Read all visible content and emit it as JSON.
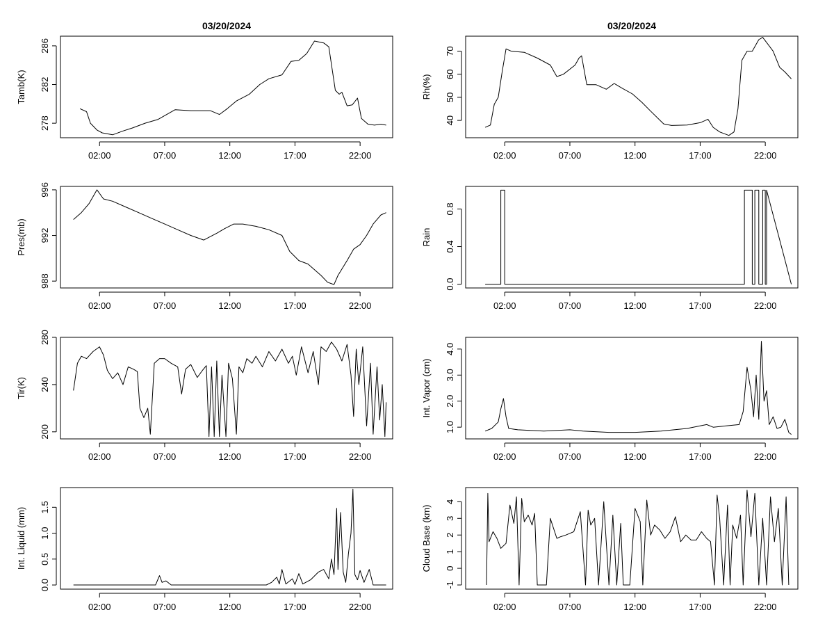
{
  "chart_data": [
    {
      "id": "tamb",
      "type": "line",
      "title": "03/20/2024",
      "ylabel": "Tamb(K)",
      "xlabel": "",
      "ylim": [
        276.5,
        287
      ],
      "yticks": [
        278,
        282,
        286
      ],
      "ytick_labels": [
        "278",
        "282",
        "286"
      ],
      "xlim": [
        -1,
        24.5
      ],
      "xticks": [
        2,
        7,
        12,
        17,
        22
      ],
      "xtick_labels": [
        "02:00",
        "07:00",
        "12:00",
        "17:00",
        "22:00"
      ],
      "series": [
        {
          "name": "Tamb",
          "x": [
            0.5,
            1,
            1.3,
            1.8,
            2.2,
            3,
            3.8,
            4.5,
            5.5,
            6.5,
            7.8,
            9,
            10.5,
            11.2,
            11.8,
            12.5,
            13.5,
            14.3,
            15,
            16,
            16.7,
            17.3,
            17.9,
            18.5,
            19.2,
            19.6,
            20.1,
            20.4,
            20.6,
            21,
            21.4,
            21.8,
            22.1,
            22.6,
            23.1,
            23.6,
            24
          ],
          "y": [
            279.5,
            279.2,
            278,
            277.3,
            277.0,
            276.8,
            277.2,
            277.5,
            278,
            278.4,
            279.4,
            279.3,
            279.3,
            278.9,
            279.5,
            280.3,
            281.0,
            282.0,
            282.6,
            283.0,
            284.4,
            284.5,
            285.2,
            286.5,
            286.3,
            285.9,
            281.4,
            281.0,
            281.2,
            279.8,
            279.9,
            280.6,
            278.5,
            277.9,
            277.8,
            277.9,
            277.8
          ]
        }
      ]
    },
    {
      "id": "rh",
      "type": "line",
      "title": "03/20/2024",
      "ylabel": "Rh(%)",
      "xlabel": "",
      "ylim": [
        32.5,
        76.5
      ],
      "yticks": [
        40,
        50,
        60,
        70
      ],
      "ytick_labels": [
        "40",
        "50",
        "60",
        "70"
      ],
      "xlim": [
        -1,
        24.5
      ],
      "xticks": [
        2,
        7,
        12,
        17,
        22
      ],
      "xtick_labels": [
        "02:00",
        "07:00",
        "12:00",
        "17:00",
        "22:00"
      ],
      "series": [
        {
          "name": "Rh",
          "x": [
            0.5,
            0.9,
            1.2,
            1.5,
            1.8,
            2.1,
            2.5,
            3.5,
            4.5,
            5.5,
            6,
            6.5,
            7.4,
            7.7,
            7.9,
            8.3,
            9,
            9.8,
            10.4,
            11,
            11.8,
            12.5,
            13.2,
            14.2,
            14.8,
            16,
            17,
            17.6,
            18,
            18.5,
            19.2,
            19.6,
            19.9,
            20.2,
            20.6,
            21,
            21.5,
            21.8,
            22.2,
            22.6,
            23.1,
            23.5,
            24
          ],
          "y": [
            37,
            38,
            47,
            50,
            61,
            71,
            70,
            69.5,
            67,
            64,
            59,
            60,
            64,
            67,
            68,
            55.5,
            55.5,
            53.5,
            56,
            54,
            51.5,
            48,
            44,
            38.5,
            37.8,
            38,
            39,
            40.5,
            37,
            35,
            33.5,
            35,
            45,
            66,
            70,
            70,
            75,
            76,
            73,
            70,
            63,
            61,
            58
          ]
        }
      ]
    },
    {
      "id": "pres",
      "type": "line",
      "ylabel": "Pres(mb)",
      "xlabel": "",
      "ylim": [
        987.4,
        996.3
      ],
      "yticks": [
        988,
        992,
        996
      ],
      "ytick_labels": [
        "988",
        "992",
        "996"
      ],
      "xlim": [
        -1,
        24.5
      ],
      "xticks": [
        2,
        7,
        12,
        17,
        22
      ],
      "xtick_labels": [
        "02:00",
        "07:00",
        "12:00",
        "17:00",
        "22:00"
      ],
      "series": [
        {
          "name": "Pres",
          "x": [
            0,
            0.6,
            1.2,
            1.8,
            2.3,
            3,
            4,
            5,
            6,
            7,
            8,
            9,
            10,
            11,
            11.6,
            12.3,
            13,
            14,
            15,
            16,
            16.6,
            17.3,
            18,
            18.5,
            19,
            19.5,
            20,
            20.3,
            21,
            21.5,
            22,
            22.5,
            23,
            23.6,
            24
          ],
          "y": [
            993.4,
            994,
            994.8,
            996,
            995.2,
            995,
            994.5,
            994,
            993.5,
            993,
            992.5,
            992,
            991.6,
            992.2,
            992.6,
            993,
            993,
            992.8,
            992.5,
            992,
            990.6,
            989.8,
            989.5,
            989,
            988.5,
            987.9,
            987.7,
            988.5,
            989.8,
            990.8,
            991.2,
            992,
            993,
            993.8,
            994
          ]
        }
      ]
    },
    {
      "id": "rain",
      "type": "line",
      "ylabel": "Rain",
      "xlabel": "",
      "ylim": [
        -0.04,
        1.04
      ],
      "yticks": [
        0,
        0.4,
        0.8
      ],
      "ytick_labels": [
        "0.0",
        "0.4",
        "0.8"
      ],
      "xlim": [
        -1,
        24.5
      ],
      "xticks": [
        2,
        7,
        12,
        17,
        22
      ],
      "xtick_labels": [
        "02:00",
        "07:00",
        "12:00",
        "17:00",
        "22:00"
      ],
      "series": [
        {
          "name": "Rain",
          "x": [
            0.5,
            1.7,
            1.7,
            2.0,
            2.0,
            20.4,
            20.4,
            21.0,
            21.0,
            21.2,
            21.2,
            21.5,
            21.5,
            21.8,
            21.8,
            22.0,
            22.0,
            22.1,
            22.1,
            24
          ],
          "y": [
            0,
            0,
            1,
            1,
            0,
            0,
            1,
            1,
            0,
            0,
            1,
            1,
            0,
            0,
            1,
            1,
            0,
            0,
            1,
            0
          ]
        }
      ]
    },
    {
      "id": "tir",
      "type": "line",
      "ylabel": "Tir(K)",
      "xlabel": "",
      "ylim": [
        194,
        280
      ],
      "yticks": [
        200,
        240,
        280
      ],
      "ytick_labels": [
        "200",
        "240",
        "280"
      ],
      "xlim": [
        -1,
        24.5
      ],
      "xticks": [
        2,
        7,
        12,
        17,
        22
      ],
      "xtick_labels": [
        "02:00",
        "07:00",
        "12:00",
        "17:00",
        "22:00"
      ],
      "series": [
        {
          "name": "Tir",
          "x": [
            0,
            0.3,
            0.6,
            1,
            1.5,
            2,
            2.3,
            2.6,
            3,
            3.4,
            3.8,
            4.2,
            4.6,
            4.9,
            5.1,
            5.4,
            5.7,
            5.9,
            6.2,
            6.6,
            7,
            7.5,
            8,
            8.3,
            8.6,
            9,
            9.5,
            9.9,
            10.2,
            10.4,
            10.6,
            10.8,
            11,
            11.2,
            11.4,
            11.7,
            11.9,
            12.2,
            12.5,
            12.7,
            13,
            13.3,
            13.7,
            14,
            14.5,
            15,
            15.5,
            16,
            16.5,
            16.8,
            17.1,
            17.5,
            18,
            18.4,
            18.8,
            19,
            19.4,
            19.8,
            20.2,
            20.6,
            21,
            21.3,
            21.5,
            21.7,
            21.9,
            22.2,
            22.5,
            22.8,
            23,
            23.3,
            23.5,
            23.7,
            23.9,
            24
          ],
          "y": [
            235,
            258,
            264,
            262,
            268,
            272,
            265,
            252,
            245,
            250,
            240,
            255,
            253,
            251,
            220,
            212,
            220,
            198,
            258,
            262,
            262,
            258,
            255,
            232,
            253,
            257,
            246,
            252,
            256,
            196,
            255,
            196,
            260,
            196,
            248,
            196,
            258,
            245,
            198,
            255,
            250,
            262,
            258,
            264,
            255,
            268,
            260,
            270,
            258,
            264,
            248,
            272,
            250,
            268,
            240,
            272,
            268,
            276,
            270,
            260,
            274,
            248,
            213,
            270,
            240,
            272,
            205,
            258,
            198,
            255,
            210,
            240,
            196,
            225
          ]
        }
      ]
    },
    {
      "id": "vapor",
      "type": "line",
      "ylabel": "Int. Vapor (cm)",
      "xlabel": "",
      "ylim": [
        0.55,
        4.45
      ],
      "yticks": [
        1,
        2,
        3,
        4
      ],
      "ytick_labels": [
        "1.0",
        "2.0",
        "3.0",
        "4.0"
      ],
      "xlim": [
        -1,
        24.5
      ],
      "xticks": [
        2,
        7,
        12,
        17,
        22
      ],
      "xtick_labels": [
        "02:00",
        "07:00",
        "12:00",
        "17:00",
        "22:00"
      ],
      "series": [
        {
          "name": "Vapor",
          "x": [
            0.5,
            1,
            1.5,
            1.7,
            1.9,
            2.1,
            2.3,
            3,
            5,
            7,
            8,
            10,
            12,
            14,
            16,
            17.5,
            18,
            19,
            20,
            20.3,
            20.6,
            20.9,
            21.1,
            21.3,
            21.5,
            21.7,
            21.9,
            22.1,
            22.3,
            22.6,
            22.9,
            23.2,
            23.5,
            23.8,
            24
          ],
          "y": [
            0.85,
            0.95,
            1.2,
            1.7,
            2.1,
            1.4,
            0.95,
            0.9,
            0.85,
            0.9,
            0.85,
            0.8,
            0.8,
            0.85,
            0.95,
            1.1,
            1.0,
            1.05,
            1.1,
            1.6,
            3.3,
            2.4,
            1.4,
            3.0,
            1.3,
            4.3,
            2.0,
            2.4,
            1.1,
            1.4,
            0.95,
            1.0,
            1.3,
            0.8,
            0.72
          ]
        }
      ]
    },
    {
      "id": "liquid",
      "type": "line",
      "ylabel": "Int. Liquid (mm)",
      "xlabel": "",
      "ylim": [
        -0.08,
        1.88
      ],
      "yticks": [
        0,
        0.5,
        1,
        1.5
      ],
      "ytick_labels": [
        "0.0",
        "0.5",
        "1.0",
        "1.5"
      ],
      "xlim": [
        -1,
        24.5
      ],
      "xticks": [
        2,
        7,
        12,
        17,
        22
      ],
      "xtick_labels": [
        "02:00",
        "07:00",
        "12:00",
        "17:00",
        "22:00"
      ],
      "series": [
        {
          "name": "Liquid",
          "x": [
            0,
            6.3,
            6.6,
            6.8,
            7.1,
            7.5,
            14.8,
            15.2,
            15.6,
            15.8,
            16,
            16.3,
            16.8,
            17,
            17.3,
            17.6,
            18.2,
            18.8,
            19.2,
            19.6,
            19.8,
            20,
            20.2,
            20.3,
            20.5,
            20.7,
            20.9,
            21.1,
            21.3,
            21.45,
            21.6,
            21.8,
            22,
            22.3,
            22.7,
            23,
            24
          ],
          "y": [
            0,
            0,
            0.18,
            0.05,
            0.08,
            0,
            0,
            0.05,
            0.15,
            0.02,
            0.3,
            0.02,
            0.12,
            0.01,
            0.22,
            0.02,
            0.1,
            0.25,
            0.3,
            0.12,
            0.5,
            0.2,
            1.48,
            0.3,
            1.4,
            0.25,
            0.05,
            0.6,
            1.0,
            1.85,
            0.2,
            0.1,
            0.28,
            0.05,
            0.3,
            0,
            0
          ]
        }
      ]
    },
    {
      "id": "cloud",
      "type": "line",
      "ylabel": "Cloud Base (km)",
      "xlabel": "",
      "ylim": [
        -1.25,
        4.85
      ],
      "yticks": [
        -1,
        0,
        1,
        2,
        3,
        4
      ],
      "ytick_labels": [
        "-1",
        "0",
        "1",
        "2",
        "3",
        "4"
      ],
      "xlim": [
        -1,
        24.5
      ],
      "xticks": [
        2,
        7,
        12,
        17,
        22
      ],
      "xtick_labels": [
        "02:00",
        "07:00",
        "12:00",
        "17:00",
        "22:00"
      ],
      "series": [
        {
          "name": "CloudBase",
          "x": [
            0.6,
            0.7,
            0.8,
            1.1,
            1.4,
            1.7,
            2.1,
            2.4,
            2.7,
            2.9,
            3.1,
            3.3,
            3.5,
            3.8,
            4.1,
            4.3,
            4.5,
            4.8,
            5.2,
            5.5,
            6,
            6.3,
            6.7,
            7.3,
            7.8,
            8.2,
            8.4,
            8.6,
            8.9,
            9.2,
            9.6,
            10,
            10.3,
            10.6,
            10.9,
            11.1,
            11.3,
            11.6,
            12,
            12.4,
            12.6,
            12.9,
            13.2,
            13.5,
            13.9,
            14.3,
            14.7,
            15.1,
            15.5,
            15.9,
            16.3,
            16.7,
            17.1,
            17.5,
            17.8,
            18.1,
            18.3,
            18.5,
            18.8,
            19.1,
            19.3,
            19.5,
            19.8,
            20.1,
            20.3,
            20.6,
            20.9,
            21.2,
            21.5,
            21.8,
            22.1,
            22.4,
            22.7,
            23,
            23.3,
            23.6,
            23.8
          ],
          "y": [
            -1,
            4.5,
            1.6,
            2.2,
            1.8,
            1.2,
            1.5,
            3.8,
            2.7,
            4.3,
            -1,
            4.2,
            2.8,
            3.2,
            2.6,
            3.3,
            -1,
            -1,
            -1,
            3.0,
            1.8,
            1.9,
            2.0,
            2.2,
            3.4,
            -1,
            3.5,
            2.6,
            3.0,
            -1,
            4.0,
            -1,
            3.2,
            -1,
            2.7,
            -1,
            -1,
            -1,
            3.6,
            2.8,
            -1,
            4.1,
            2.0,
            2.6,
            2.3,
            1.8,
            2.2,
            3.1,
            1.6,
            2.0,
            1.7,
            1.7,
            2.2,
            1.8,
            1.6,
            -1,
            4.4,
            3.0,
            -1,
            3.8,
            -1,
            2.6,
            1.8,
            3.2,
            -1,
            4.7,
            1.9,
            4.5,
            -1,
            3.0,
            -1,
            4.3,
            1.6,
            3.6,
            -1,
            4.3,
            -1
          ]
        }
      ]
    }
  ]
}
